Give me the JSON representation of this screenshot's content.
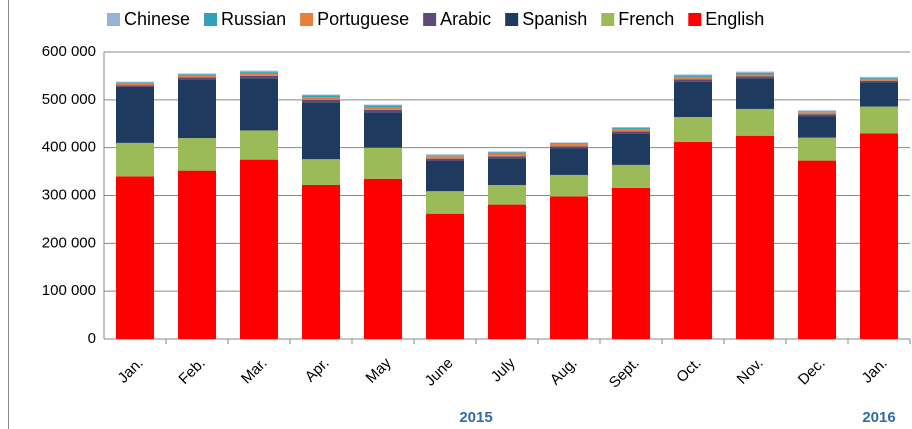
{
  "chart_data": {
    "type": "stacked_bar",
    "categories": [
      "Jan.",
      "Feb.",
      "Mar.",
      "Apr.",
      "May",
      "June",
      "July",
      "Aug.",
      "Sept.",
      "Oct.",
      "Nov.",
      "Dec.",
      "Jan."
    ],
    "group_labels": [
      "2015",
      "2016"
    ],
    "series": [
      {
        "name": "Chinese",
        "color": "#95b3d7",
        "values": [
          2000,
          2000,
          3000,
          2000,
          2000,
          2000,
          2000,
          1000,
          2000,
          2000,
          3000,
          2000,
          2000
        ]
      },
      {
        "name": "Russian",
        "color": "#31a0b8",
        "values": [
          2000,
          2000,
          3000,
          3000,
          3000,
          2000,
          3000,
          2000,
          2000,
          3000,
          3000,
          2000,
          2000
        ]
      },
      {
        "name": "Portuguese",
        "color": "#e8803a",
        "values": [
          4000,
          4000,
          5000,
          6000,
          6000,
          5000,
          5000,
          5000,
          5000,
          5000,
          4000,
          4000,
          4000
        ]
      },
      {
        "name": "Arabic",
        "color": "#604a7b",
        "values": [
          3000,
          4000,
          5000,
          5000,
          5000,
          4000,
          4000,
          4000,
          4000,
          5000,
          4000,
          4000,
          3000
        ]
      },
      {
        "name": "Spanish",
        "color": "#1f3a5f",
        "values": [
          117000,
          123000,
          109000,
          119000,
          74000,
          64000,
          56000,
          56000,
          66000,
          74000,
          64000,
          45000,
          51000
        ]
      },
      {
        "name": "French",
        "color": "#9bbb59",
        "values": [
          70000,
          68000,
          61000,
          54000,
          65000,
          47000,
          41000,
          45000,
          48000,
          52000,
          56000,
          48000,
          56000
        ]
      },
      {
        "name": "English",
        "color": "#ff0000",
        "values": [
          340000,
          352000,
          375000,
          322000,
          335000,
          262000,
          281000,
          298000,
          316000,
          412000,
          425000,
          373000,
          430000
        ]
      }
    ],
    "ylim": [
      0,
      600000
    ],
    "yticks": [
      0,
      {
        "value": 100000,
        "label": "100 000"
      },
      {
        "value": 200000,
        "label": "200 000"
      },
      {
        "value": 300000,
        "label": "300 000"
      },
      {
        "value": 400000,
        "label": "400 000"
      },
      {
        "value": 500000,
        "label": "500 000"
      },
      {
        "value": 600000,
        "label": "600 000"
      }
    ],
    "grid": true,
    "legend": "top"
  }
}
